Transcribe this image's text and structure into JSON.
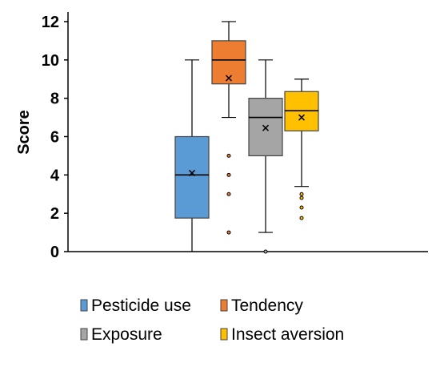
{
  "chart_data": {
    "type": "box",
    "title": "",
    "xlabel": "",
    "ylabel": "Score",
    "ylim": [
      0,
      12.5
    ],
    "yticks": [
      "0",
      "2",
      "4",
      "6",
      "8",
      "10",
      "12"
    ],
    "grid": false,
    "legend_position": "bottom",
    "series": [
      {
        "name": "Pesticide use",
        "color": "#5B9BD5",
        "min": 0,
        "q1": 1.75,
        "median": 4,
        "q3": 6,
        "max": 10,
        "mean": 4.1,
        "outliers": []
      },
      {
        "name": "Tendency",
        "color": "#ED7D31",
        "min": 7,
        "q1": 8.75,
        "median": 10,
        "q3": 11,
        "max": 12,
        "mean": 9.05,
        "outliers": [
          5,
          4,
          3,
          1
        ]
      },
      {
        "name": "Exposure",
        "color": "#A5A5A5",
        "min": 1,
        "q1": 5,
        "median": 7,
        "q3": 8,
        "max": 10,
        "mean": 6.45,
        "outliers": [
          0
        ]
      },
      {
        "name": "Insect aversion",
        "color": "#FFC000",
        "min": 3.4,
        "q1": 6.3,
        "median": 7.35,
        "q3": 8.35,
        "max": 9,
        "mean": 7,
        "outliers": [
          3,
          2.8,
          2.3,
          1.75
        ]
      }
    ]
  }
}
